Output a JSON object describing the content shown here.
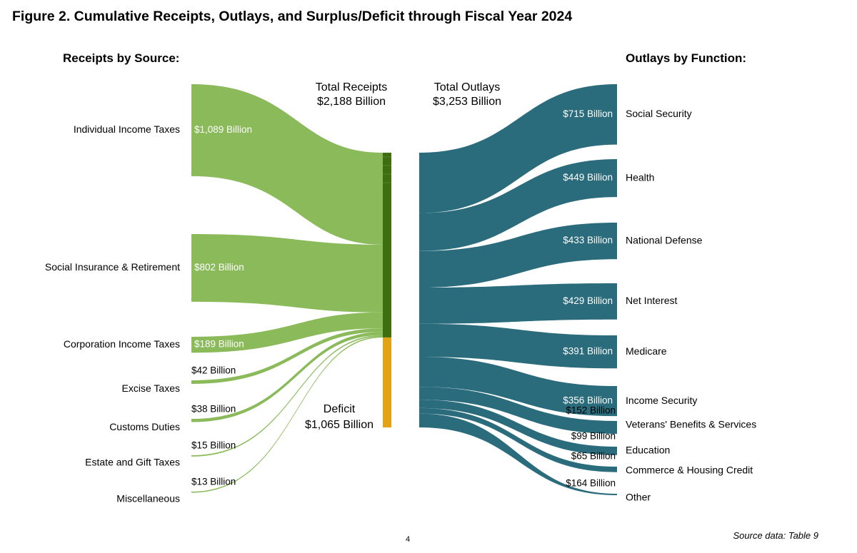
{
  "title": "Figure 2. Cumulative Receipts, Outlays, and Surplus/Deficit through Fiscal Year 2024",
  "receipts_heading": "Receipts by Source:",
  "outlays_heading": "Outlays by Function:",
  "page_number": "4",
  "source_note": "Source data: Table 9",
  "colors": {
    "receipts_flow": "#8aba5a",
    "receipts_bar": "#3f6e12",
    "deficit_bar": "#e2a316",
    "outlays": "#2a6b7c"
  },
  "chart_data": {
    "type": "sankey",
    "units": "Billion",
    "total_receipts": {
      "label": "Total Receipts",
      "value_label": "$2,188 Billion",
      "value": 2188
    },
    "total_outlays": {
      "label": "Total Outlays",
      "value_label": "$3,253 Billion",
      "value": 3253
    },
    "deficit": {
      "label": "Deficit",
      "value_label": "$1,065 Billion",
      "value": 1065
    },
    "receipts": [
      {
        "name": "Individual Income Taxes",
        "value": 1089,
        "value_label": "$1,089 Billion"
      },
      {
        "name": "Social Insurance & Retirement",
        "value": 802,
        "value_label": "$802 Billion"
      },
      {
        "name": "Corporation Income Taxes",
        "value": 189,
        "value_label": "$189 Billion"
      },
      {
        "name": "Excise Taxes",
        "value": 42,
        "value_label": "$42 Billion"
      },
      {
        "name": "Customs Duties",
        "value": 38,
        "value_label": "$38 Billion"
      },
      {
        "name": "Estate and Gift Taxes",
        "value": 15,
        "value_label": "$15 Billion"
      },
      {
        "name": "Miscellaneous",
        "value": 13,
        "value_label": "$13 Billion"
      }
    ],
    "outlays": [
      {
        "name": "Social Security",
        "value": 715,
        "value_label": "$715 Billion"
      },
      {
        "name": "Health",
        "value": 449,
        "value_label": "$449 Billion"
      },
      {
        "name": "National Defense",
        "value": 433,
        "value_label": "$433 Billion"
      },
      {
        "name": "Net Interest",
        "value": 429,
        "value_label": "$429 Billion"
      },
      {
        "name": "Medicare",
        "value": 391,
        "value_label": "$391 Billion"
      },
      {
        "name": "Income Security",
        "value": 356,
        "value_label": "$356 Billion"
      },
      {
        "name": "Veterans' Benefits & Services",
        "value": 152,
        "value_label": "$152 Billion"
      },
      {
        "name": "Education",
        "value": 99,
        "value_label": "$99 Billion"
      },
      {
        "name": "Commerce & Housing Credit",
        "value": 65,
        "value_label": "$65 Billion"
      },
      {
        "name": "Other",
        "value": 164,
        "value_label": "$164 Billion"
      }
    ]
  }
}
